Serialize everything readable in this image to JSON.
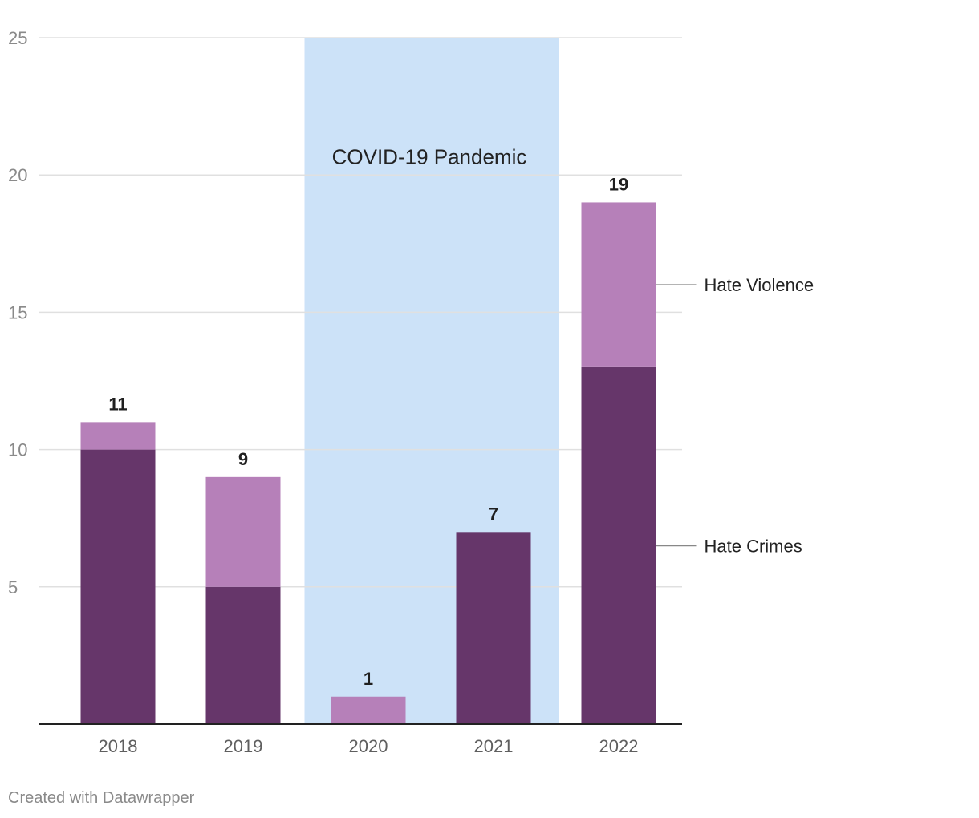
{
  "chart_data": {
    "type": "bar",
    "stacked": true,
    "categories": [
      "2018",
      "2019",
      "2020",
      "2021",
      "2022"
    ],
    "series": [
      {
        "name": "Hate Crimes",
        "color": "#66366a",
        "values": [
          10,
          5,
          0,
          7,
          13
        ]
      },
      {
        "name": "Hate Violence",
        "color": "#b680b9",
        "values": [
          1,
          4,
          1,
          0,
          6
        ]
      }
    ],
    "totals": [
      11,
      9,
      1,
      7,
      19
    ],
    "ylim": [
      0,
      25
    ],
    "yticks": [
      5,
      10,
      15,
      20,
      25
    ],
    "grid": true,
    "xlabel": "",
    "ylabel": "",
    "title": "",
    "annotation_band": {
      "label": "COVID-19 Pandemic",
      "from_category": "2020",
      "to_category": "2021",
      "color": "#cce2f8"
    }
  },
  "footer": {
    "credit": "Created with Datawrapper"
  }
}
